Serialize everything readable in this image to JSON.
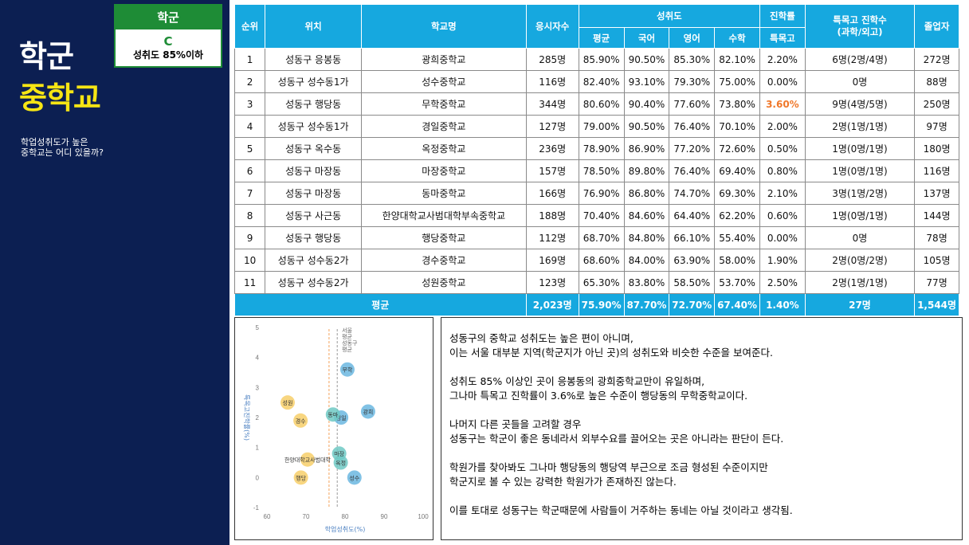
{
  "sidebar": {
    "title_line1": "학군",
    "title_line2": "중학교",
    "subtitle": "학업성취도가 높은\n중학교는 어디 있을까?",
    "grade_box": {
      "header": "학군",
      "grade": "C",
      "description": "성취도 85%이하"
    }
  },
  "table": {
    "headers": {
      "rank": "순위",
      "location": "위치",
      "school": "학교명",
      "applicants": "응시자수",
      "achievement": "성취도",
      "avg": "평균",
      "korean": "국어",
      "english": "영어",
      "math": "수학",
      "advancement": "진학률",
      "special": "특목고",
      "special_count": "특목고 진학수\n(과학/외고)",
      "graduates": "졸업자"
    },
    "rows": [
      {
        "rank": "1",
        "location": "성동구 응봉동",
        "school": "광희중학교",
        "applicants": "285명",
        "avg": "85.90%",
        "korean": "90.50%",
        "english": "85.30%",
        "math": "82.10%",
        "special_rate": "2.20%",
        "special_count": "6명(2명/4명)",
        "graduates": "272명"
      },
      {
        "rank": "2",
        "location": "성동구 성수동1가",
        "school": "성수중학교",
        "applicants": "116명",
        "avg": "82.40%",
        "korean": "93.10%",
        "english": "79.30%",
        "math": "75.00%",
        "special_rate": "0.00%",
        "special_count": "0명",
        "graduates": "88명"
      },
      {
        "rank": "3",
        "location": "성동구 행당동",
        "school": "무학중학교",
        "applicants": "344명",
        "avg": "80.60%",
        "korean": "90.40%",
        "english": "77.60%",
        "math": "73.80%",
        "special_rate": "3.60%",
        "special_count": "9명(4명/5명)",
        "graduates": "250명",
        "highlight": true
      },
      {
        "rank": "4",
        "location": "성동구 성수동1가",
        "school": "경일중학교",
        "applicants": "127명",
        "avg": "79.00%",
        "korean": "90.50%",
        "english": "76.40%",
        "math": "70.10%",
        "special_rate": "2.00%",
        "special_count": "2명(1명/1명)",
        "graduates": "97명"
      },
      {
        "rank": "5",
        "location": "성동구 옥수동",
        "school": "옥정중학교",
        "applicants": "236명",
        "avg": "78.90%",
        "korean": "86.90%",
        "english": "77.20%",
        "math": "72.60%",
        "special_rate": "0.50%",
        "special_count": "1명(0명/1명)",
        "graduates": "180명"
      },
      {
        "rank": "6",
        "location": "성동구 마장동",
        "school": "마장중학교",
        "applicants": "157명",
        "avg": "78.50%",
        "korean": "89.80%",
        "english": "76.40%",
        "math": "69.40%",
        "special_rate": "0.80%",
        "special_count": "1명(0명/1명)",
        "graduates": "116명"
      },
      {
        "rank": "7",
        "location": "성동구 마장동",
        "school": "동마중학교",
        "applicants": "166명",
        "avg": "76.90%",
        "korean": "86.80%",
        "english": "74.70%",
        "math": "69.30%",
        "special_rate": "2.10%",
        "special_count": "3명(1명/2명)",
        "graduates": "137명"
      },
      {
        "rank": "8",
        "location": "성동구 사근동",
        "school": "한양대학교사범대학부속중학교",
        "applicants": "188명",
        "avg": "70.40%",
        "korean": "84.60%",
        "english": "64.40%",
        "math": "62.20%",
        "special_rate": "0.60%",
        "special_count": "1명(0명/1명)",
        "graduates": "144명"
      },
      {
        "rank": "9",
        "location": "성동구 행당동",
        "school": "행당중학교",
        "applicants": "112명",
        "avg": "68.70%",
        "korean": "84.80%",
        "english": "66.10%",
        "math": "55.40%",
        "special_rate": "0.00%",
        "special_count": "0명",
        "graduates": "78명"
      },
      {
        "rank": "10",
        "location": "성동구 성수동2가",
        "school": "경수중학교",
        "applicants": "169명",
        "avg": "68.60%",
        "korean": "84.00%",
        "english": "63.90%",
        "math": "58.00%",
        "special_rate": "1.90%",
        "special_count": "2명(0명/2명)",
        "graduates": "105명"
      },
      {
        "rank": "11",
        "location": "성동구 성수동2가",
        "school": "성원중학교",
        "applicants": "123명",
        "avg": "65.30%",
        "korean": "83.80%",
        "english": "58.50%",
        "math": "53.70%",
        "special_rate": "2.50%",
        "special_count": "2명(1명/1명)",
        "graduates": "77명"
      }
    ],
    "average": {
      "label": "평균",
      "applicants": "2,023명",
      "avg": "75.90%",
      "korean": "87.70%",
      "english": "72.70%",
      "math": "67.40%",
      "special_rate": "1.40%",
      "special_count": "27명",
      "graduates": "1,544명"
    }
  },
  "chart_data": {
    "type": "scatter",
    "xlabel": "학업성취도(%)",
    "ylabel": "특목고진학률(%)",
    "xlim": [
      60,
      100
    ],
    "ylim": [
      -1,
      5
    ],
    "xticks": [
      60,
      70,
      80,
      90,
      100
    ],
    "yticks": [
      -1,
      0,
      1,
      2,
      3,
      4,
      5
    ],
    "grid": false,
    "reference_lines": [
      {
        "x": 75.9,
        "label": "성동구 평균",
        "color": "#f5a35c"
      },
      {
        "x": 78.0,
        "label": "서울시 평균",
        "color": "#9a9a9a"
      }
    ],
    "reference_label": "서울\n평균\n성동구\n평균",
    "points": [
      {
        "label": "광희",
        "x": 85.9,
        "y": 2.2,
        "color": "#6bb7e0"
      },
      {
        "label": "성수",
        "x": 82.4,
        "y": 0.0,
        "color": "#6bb7e0"
      },
      {
        "label": "무학",
        "x": 80.6,
        "y": 3.6,
        "color": "#6bb7e0"
      },
      {
        "label": "경일",
        "x": 79.0,
        "y": 2.0,
        "color": "#6bb7e0"
      },
      {
        "label": "옥정",
        "x": 78.9,
        "y": 0.5,
        "color": "#6fc9c4"
      },
      {
        "label": "마장",
        "x": 78.5,
        "y": 0.8,
        "color": "#6fc9c4"
      },
      {
        "label": "동마",
        "x": 76.9,
        "y": 2.1,
        "color": "#6fc9c4"
      },
      {
        "label": "한양대학교사범대학",
        "x": 70.4,
        "y": 0.6,
        "color": "#f7cf6a"
      },
      {
        "label": "행당",
        "x": 68.7,
        "y": 0.0,
        "color": "#f7cf6a"
      },
      {
        "label": "경수",
        "x": 68.6,
        "y": 1.9,
        "color": "#f7cf6a"
      },
      {
        "label": "성원",
        "x": 65.3,
        "y": 2.5,
        "color": "#f7cf6a"
      }
    ]
  },
  "commentary": {
    "paragraphs": [
      "성동구의 중학교 성취도는 높은 편이 아니며,\n이는 서울 대부분 지역(학군지가 아닌 곳)의 성취도와 비슷한 수준을 보여준다.",
      "성취도 85% 이상인 곳이 응봉동의 광희중학교만이 유일하며,\n그나마 특목고 진학률이 3.6%로 높은 수준이 행당동의 무학중학교이다.",
      "나머지 다른 곳들을 고려할 경우\n성동구는 학군이 좋은 동네라서 외부수요를 끌어오는 곳은 아니라는 판단이 든다.",
      "학원가를 찾아봐도 그나마 행당동의 행당역 부근으로 조금 형성된 수준이지만\n학군지로 볼 수 있는 강력한 학원가가 존재하진 않는다.",
      "이를 토대로 성동구는 학군때문에 사람들이 거주하는 동네는 아닐 것이라고 생각됨."
    ]
  }
}
